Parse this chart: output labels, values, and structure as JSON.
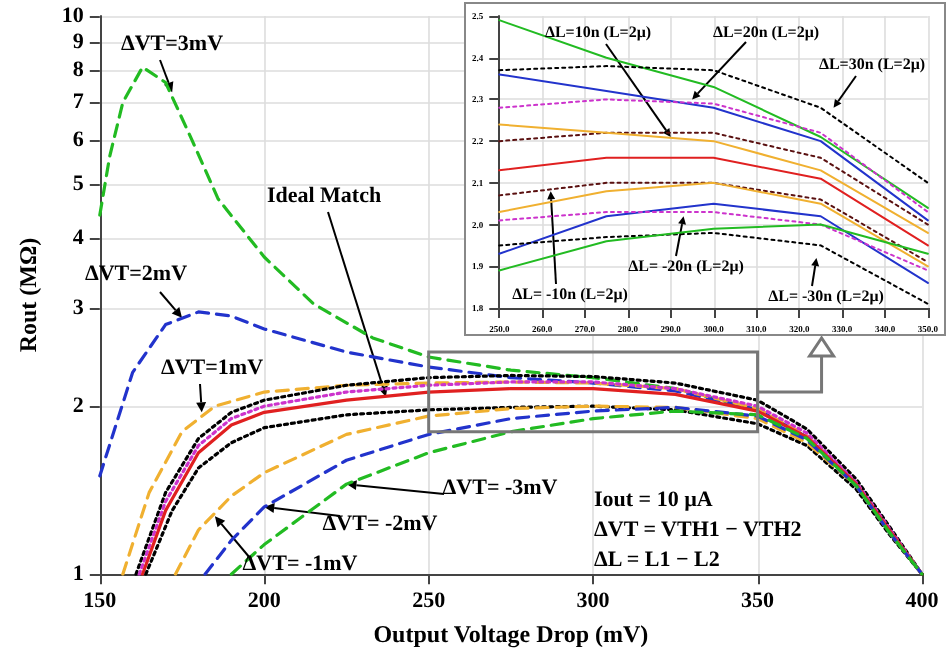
{
  "chart_data": [
    {
      "type": "line",
      "xlabel": "Output Voltage Drop (mV)",
      "ylabel": "Rout (MΩ)",
      "log": "y",
      "grid": true,
      "marker": "none",
      "xlim": [
        150,
        400
      ],
      "xticks": [
        150,
        200,
        250,
        300,
        350,
        400
      ],
      "ylim": [
        1,
        10
      ],
      "yticks": [
        1,
        2,
        3,
        4,
        5,
        6,
        7,
        8,
        9,
        10
      ],
      "series": [
        {
          "color": "#22bb22",
          "line_style": "dashed",
          "x": [
            150,
            153,
            157,
            163,
            170,
            178,
            186,
            200,
            215,
            233,
            250,
            275,
            300,
            325,
            350,
            365,
            380,
            390,
            400
          ],
          "values": [
            4.4,
            5.6,
            7,
            8.1,
            7.6,
            6,
            4.7,
            3.7,
            3.05,
            2.65,
            2.45,
            2.32,
            2.25,
            2.15,
            1.97,
            1.76,
            1.45,
            1.2,
            1.0
          ]
        },
        {
          "color": "#2233cc",
          "line_style": "dashed",
          "x": [
            150,
            160,
            170,
            180,
            190,
            200,
            225,
            250,
            275,
            300,
            325,
            350,
            365,
            380,
            390,
            400
          ],
          "values": [
            1.5,
            2.3,
            2.8,
            2.95,
            2.9,
            2.75,
            2.5,
            2.35,
            2.25,
            2.2,
            2.13,
            1.97,
            1.76,
            1.45,
            1.2,
            1.0
          ]
        },
        {
          "color": "#f0b030",
          "line_style": "dashed",
          "x": [
            157,
            165,
            175,
            185,
            200,
            225,
            250,
            275,
            300,
            325,
            350,
            365,
            380,
            390,
            400
          ],
          "values": [
            1,
            1.4,
            1.8,
            2.0,
            2.12,
            2.18,
            2.2,
            2.21,
            2.2,
            2.15,
            1.98,
            1.77,
            1.45,
            1.2,
            1.0
          ]
        },
        {
          "color": "#000000",
          "line_style": "dotted",
          "x": [
            161,
            170,
            180,
            190,
            200,
            225,
            250,
            275,
            300,
            325,
            350,
            365,
            380,
            390,
            400
          ],
          "values": [
            1,
            1.4,
            1.75,
            1.95,
            2.05,
            2.18,
            2.25,
            2.27,
            2.26,
            2.2,
            2.05,
            1.82,
            1.48,
            1.22,
            1.0
          ]
        },
        {
          "color": "#cc33cc",
          "line_style": "dotted",
          "x": [
            162,
            170,
            180,
            190,
            200,
            225,
            250,
            275,
            300,
            325,
            350,
            365,
            380,
            390,
            400
          ],
          "values": [
            1,
            1.35,
            1.7,
            1.9,
            2.0,
            2.12,
            2.18,
            2.21,
            2.21,
            2.15,
            2.0,
            1.79,
            1.46,
            1.21,
            1.0
          ]
        },
        {
          "color": "#e02020",
          "line_style": "solid",
          "x": [
            163,
            170,
            180,
            190,
            200,
            225,
            250,
            275,
            300,
            325,
            350,
            365,
            380,
            390,
            400
          ],
          "values": [
            1,
            1.3,
            1.65,
            1.85,
            1.95,
            2.05,
            2.12,
            2.15,
            2.15,
            2.1,
            1.96,
            1.76,
            1.45,
            1.2,
            1.0
          ]
        },
        {
          "color": "#000000",
          "line_style": "dotted",
          "x": [
            164,
            172,
            180,
            190,
            200,
            225,
            250,
            275,
            300,
            325,
            350,
            365,
            380,
            390,
            400
          ],
          "values": [
            1,
            1.3,
            1.55,
            1.72,
            1.83,
            1.93,
            1.97,
            1.99,
            2.0,
            1.97,
            1.86,
            1.7,
            1.42,
            1.18,
            1.0
          ]
        },
        {
          "color": "#f0b030",
          "line_style": "dashed",
          "x": [
            173,
            180,
            190,
            200,
            225,
            250,
            275,
            300,
            325,
            350,
            365,
            380,
            390,
            400
          ],
          "values": [
            1,
            1.2,
            1.38,
            1.52,
            1.78,
            1.92,
            1.98,
            2.0,
            1.99,
            1.9,
            1.72,
            1.44,
            1.19,
            1.0
          ]
        },
        {
          "color": "#2233cc",
          "line_style": "dashed",
          "x": [
            182,
            190,
            200,
            225,
            250,
            275,
            300,
            325,
            350,
            365,
            380,
            390,
            400
          ],
          "values": [
            1,
            1.15,
            1.32,
            1.6,
            1.78,
            1.9,
            1.96,
            1.99,
            1.92,
            1.74,
            1.44,
            1.19,
            1.0
          ]
        },
        {
          "color": "#22bb22",
          "line_style": "dashed",
          "x": [
            190,
            200,
            225,
            250,
            275,
            300,
            325,
            350,
            365,
            380,
            390,
            400
          ],
          "values": [
            1,
            1.13,
            1.45,
            1.65,
            1.8,
            1.9,
            1.96,
            1.93,
            1.75,
            1.44,
            1.19,
            1.0
          ]
        }
      ],
      "annotations": [
        {
          "text": "ΔVT=3mV",
          "x": 172,
          "y": 7.3
        },
        {
          "text": "ΔVT=2mV",
          "x": 175,
          "y": 2.88
        },
        {
          "text": "ΔVT=1mV",
          "x": 181,
          "y": 1.95
        },
        {
          "text": "Ideal Match",
          "x": 237,
          "y": 2.08
        },
        {
          "text": "ΔVT= -3mV",
          "x": 225,
          "y": 1.45
        },
        {
          "text": "ΔVT= -2mV",
          "x": 200,
          "y": 1.32
        },
        {
          "text": "ΔVT= -1mV",
          "x": 185,
          "y": 1.27
        },
        "Iout = 10 µA",
        "ΔVT = VTH1 − VTH2",
        "ΔL = L1 − L2"
      ]
    },
    {
      "type": "line",
      "grid": true,
      "marker": "none",
      "xlim": [
        250,
        350
      ],
      "xticks": [
        {
          "value": 250,
          "label": "250.0"
        },
        {
          "value": 260,
          "label": "260.0"
        },
        {
          "value": 270,
          "label": "270.0"
        },
        {
          "value": 280,
          "label": "280.0"
        },
        {
          "value": 290,
          "label": "290.0"
        },
        {
          "value": 300,
          "label": "300.0"
        },
        {
          "value": 310,
          "label": "310.0"
        },
        {
          "value": 320,
          "label": "320.0"
        },
        {
          "value": 330,
          "label": "330.0"
        },
        {
          "value": 340,
          "label": "340.0"
        },
        {
          "value": 350,
          "label": "350.0"
        }
      ],
      "ylim": [
        1.8,
        2.5
      ],
      "yticks": [
        1.8,
        1.9,
        {
          "value": 2.0,
          "label": "2.0"
        },
        2.1,
        2.2,
        2.3,
        2.4,
        2.5
      ],
      "x": [
        250,
        275,
        300,
        325,
        350
      ],
      "series": [
        {
          "color": "#22bb22",
          "line_style": "solid",
          "values": [
            2.49,
            2.4,
            2.33,
            2.21,
            2.04
          ]
        },
        {
          "color": "#000000",
          "line_style": "dotted",
          "values": [
            2.37,
            2.38,
            2.37,
            2.28,
            2.1
          ]
        },
        {
          "color": "#2233cc",
          "line_style": "solid",
          "values": [
            2.36,
            2.32,
            2.28,
            2.2,
            2.01
          ]
        },
        {
          "color": "#cc33cc",
          "line_style": "dotted",
          "values": [
            2.28,
            2.3,
            2.29,
            2.22,
            2.03
          ]
        },
        {
          "color": "#5a1010",
          "line_style": "dotted",
          "values": [
            2.2,
            2.22,
            2.22,
            2.16,
            2.0
          ]
        },
        {
          "color": "#f0b030",
          "line_style": "solid",
          "values": [
            2.24,
            2.22,
            2.2,
            2.13,
            1.98
          ]
        },
        {
          "color": "#e02020",
          "line_style": "solid",
          "values": [
            2.13,
            2.16,
            2.16,
            2.11,
            1.95
          ]
        },
        {
          "color": "#5a1010",
          "line_style": "dotted",
          "values": [
            2.07,
            2.1,
            2.1,
            2.06,
            1.91
          ]
        },
        {
          "color": "#f0b030",
          "line_style": "solid",
          "values": [
            2.03,
            2.08,
            2.1,
            2.05,
            1.9
          ]
        },
        {
          "color": "#2233cc",
          "line_style": "solid",
          "values": [
            1.93,
            2.02,
            2.05,
            2.02,
            1.86
          ]
        },
        {
          "color": "#cc33cc",
          "line_style": "dotted",
          "values": [
            2.01,
            2.03,
            2.03,
            2.0,
            1.89
          ]
        },
        {
          "color": "#000000",
          "line_style": "dotted",
          "values": [
            1.95,
            1.97,
            1.98,
            1.95,
            1.81
          ]
        },
        {
          "color": "#22bb22",
          "line_style": "solid",
          "values": [
            1.89,
            1.96,
            1.99,
            2.0,
            1.93
          ]
        }
      ],
      "annotations": [
        {
          "text": "ΔL=10n (L=2μ)",
          "x": 290,
          "y": 2.21
        },
        {
          "text": "ΔL=20n (L=2μ)",
          "x": 295,
          "y": 2.3
        },
        {
          "text": "ΔL=30n (L=2μ)",
          "x": 328,
          "y": 2.28
        },
        {
          "text": "ΔL= -10n (L=2μ)",
          "x": 262,
          "y": 2.08
        },
        {
          "text": "ΔL= -20n (L=2μ)",
          "x": 293,
          "y": 2.02
        },
        {
          "text": "ΔL= -30n (L=2μ)",
          "x": 324,
          "y": 1.92
        }
      ]
    }
  ]
}
